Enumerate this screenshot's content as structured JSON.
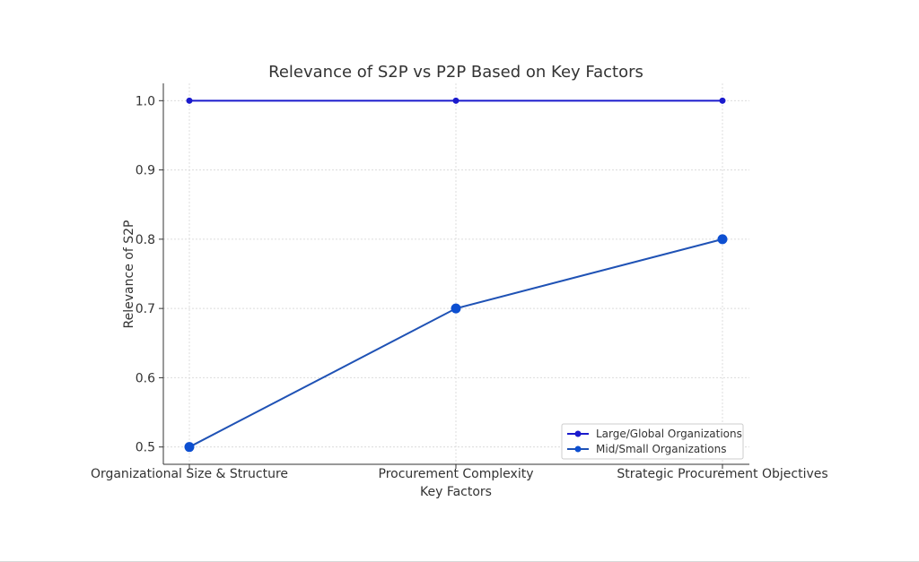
{
  "chart_data": {
    "type": "line",
    "title": "Relevance of S2P vs P2P Based on Key Factors",
    "xlabel": "Key Factors",
    "ylabel": "Relevance of S2P",
    "categories": [
      "Organizational Size & Structure",
      "Procurement Complexity",
      "Strategic Procurement Objectives"
    ],
    "ylim": [
      0.475,
      1.025
    ],
    "yticks": [
      "0.5",
      "0.6",
      "0.7",
      "0.8",
      "0.9",
      "1.0"
    ],
    "grid": true,
    "legend_position": "lower-right",
    "series": [
      {
        "name": "Large/Global Organizations",
        "values": [
          1.0,
          1.0,
          1.0
        ],
        "color": "#1a1acd",
        "marker": "small"
      },
      {
        "name": "Mid/Small Organizations",
        "values": [
          0.5,
          0.7,
          0.8
        ],
        "color": "#1f52b5",
        "marker": "large"
      }
    ]
  }
}
